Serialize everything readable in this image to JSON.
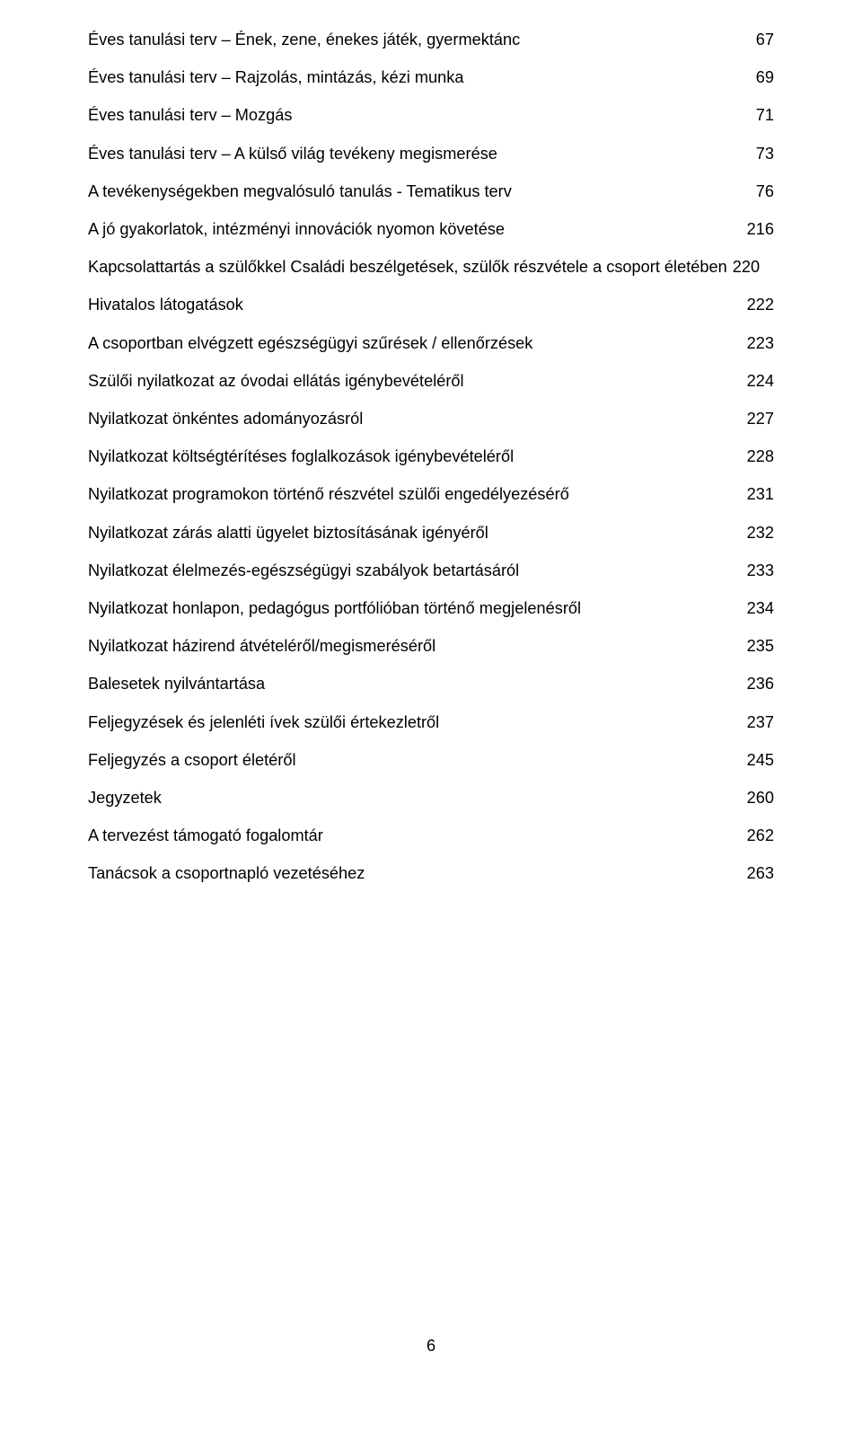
{
  "toc": [
    {
      "label": "Éves tanulási terv – Ének, zene, énekes játék, gyermektánc",
      "page": "67"
    },
    {
      "label": "Éves tanulási terv – Rajzolás, mintázás, kézi munka",
      "page": "69"
    },
    {
      "label": "Éves tanulási terv – Mozgás",
      "page": "71"
    },
    {
      "label": "Éves tanulási terv – A külső világ tevékeny megismerése",
      "page": "73"
    },
    {
      "label": "A tevékenységekben megvalósuló tanulás - Tematikus terv",
      "page": "76"
    },
    {
      "label": "A jó gyakorlatok, intézményi innovációk nyomon követése",
      "page": "216"
    },
    {
      "label": "Kapcsolattartás a szülőkkel Családi beszélgetések, szülők részvétele a csoport életében",
      "page": "220",
      "wrap": true
    },
    {
      "label": "Hivatalos látogatások",
      "page": "222"
    },
    {
      "label": "A csoportban elvégzett egészségügyi szűrések / ellenőrzések",
      "page": "223"
    },
    {
      "label": "Szülői nyilatkozat az óvodai ellátás igénybevételéről",
      "page": "224"
    },
    {
      "label": "Nyilatkozat önkéntes adományozásról",
      "page": "227"
    },
    {
      "label": "Nyilatkozat költségtérítéses foglalkozások igénybevételéről",
      "page": "228"
    },
    {
      "label": "Nyilatkozat programokon történő részvétel szülői engedélyezésérő",
      "page": "231"
    },
    {
      "label": "Nyilatkozat zárás alatti ügyelet biztosításának igényéről",
      "page": "232"
    },
    {
      "label": "Nyilatkozat élelmezés-egészségügyi szabályok betartásáról",
      "page": "233"
    },
    {
      "label": "Nyilatkozat honlapon, pedagógus portfólióban történő megjelenésről",
      "page": "234"
    },
    {
      "label": "Nyilatkozat házirend átvételéről/megismeréséről",
      "page": "235"
    },
    {
      "label": "Balesetek nyilvántartása",
      "page": "236"
    },
    {
      "label": "Feljegyzések és jelenléti ívek szülői értekezletről",
      "page": "237"
    },
    {
      "label": "Feljegyzés a csoport életéről",
      "page": "245"
    },
    {
      "label": "Jegyzetek",
      "page": "260"
    },
    {
      "label": "A tervezést támogató fogalomtár",
      "page": "262"
    },
    {
      "label": "Tanácsok a csoportnapló vezetéséhez",
      "page": "263"
    }
  ],
  "pageNumber": "6",
  "style": {
    "fontSize": 18.2,
    "textColor": "#000000",
    "backgroundColor": "#ffffff",
    "pageWidth": 960,
    "pageHeight": 1603
  }
}
